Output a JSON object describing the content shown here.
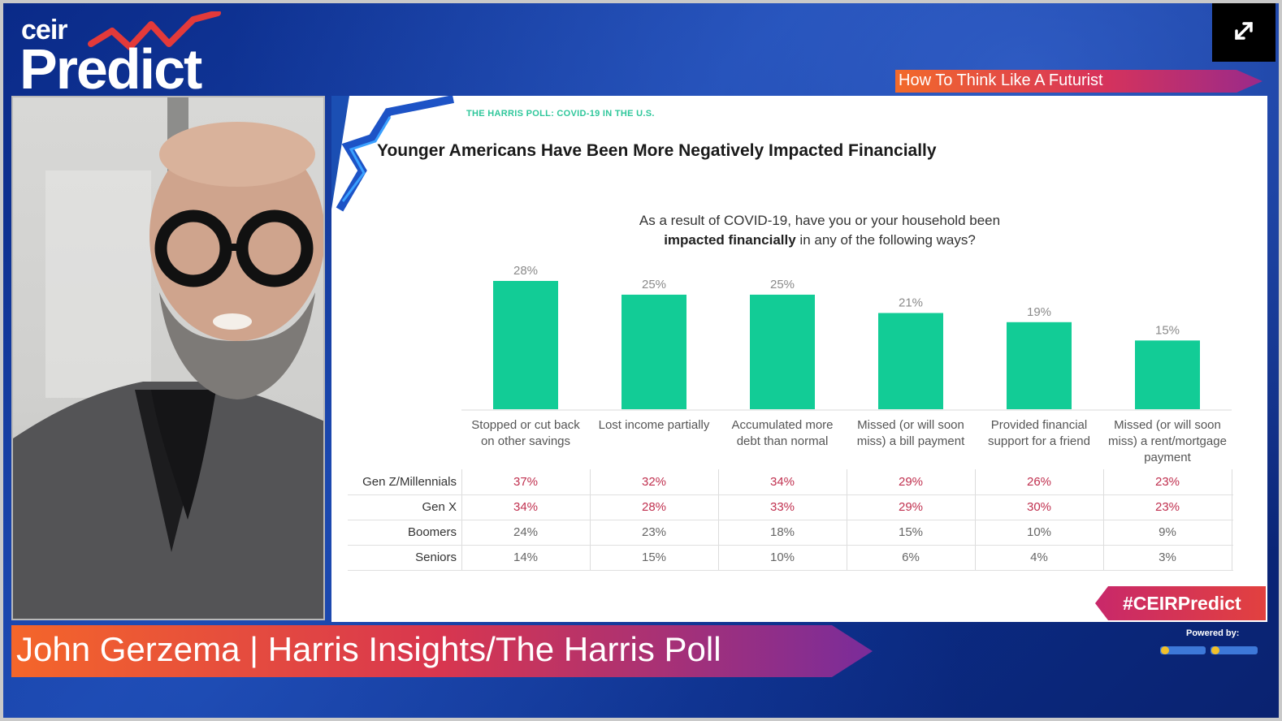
{
  "brand": {
    "small": "ceir",
    "big": "Predict"
  },
  "session_title": "How To Think Like A Futurist",
  "slide": {
    "source": "THE HARRIS POLL: COVID-19 IN THE U.S.",
    "title": "Younger Americans Have Been More Negatively Impacted Financially",
    "question_part1": "As a result of COVID-19, have you or your household been",
    "question_bold": "impacted financially",
    "question_part2": " in any of the following ways?"
  },
  "chart_data": {
    "type": "bar",
    "categories": [
      "Stopped or cut back on other savings",
      "Lost income partially",
      "Accumulated more debt than normal",
      "Missed (or will soon miss) a bill payment",
      "Provided financial support for a friend",
      "Missed (or will soon miss) a rent/mortgage payment"
    ],
    "values": [
      28,
      25,
      25,
      21,
      19,
      15
    ],
    "value_labels": [
      "28%",
      "25%",
      "25%",
      "21%",
      "19%",
      "15%"
    ],
    "unit": "%",
    "bar_color": "#12cc96",
    "ylim": [
      0,
      28
    ],
    "grid": false
  },
  "generations": {
    "highlight_color": "#c0304f",
    "normal_color": "#666666",
    "rows": [
      {
        "name": "Gen Z/Millennials",
        "values": [
          "37%",
          "32%",
          "34%",
          "29%",
          "26%",
          "23%"
        ],
        "highlight": true
      },
      {
        "name": "Gen X",
        "values": [
          "34%",
          "28%",
          "33%",
          "29%",
          "30%",
          "23%"
        ],
        "highlight": true
      },
      {
        "name": "Boomers",
        "values": [
          "24%",
          "23%",
          "18%",
          "15%",
          "10%",
          "9%"
        ],
        "highlight": false
      },
      {
        "name": "Seniors",
        "values": [
          "14%",
          "15%",
          "10%",
          "6%",
          "4%",
          "3%"
        ],
        "highlight": false
      }
    ]
  },
  "hashtag": "#CEIRPredict",
  "speaker": {
    "name_line": "John Gerzema | Harris Insights/The Harris Poll"
  },
  "powered_by": "Powered by:",
  "colors": {
    "background": "#0d2b7a",
    "accent_orange": "#f06a2a",
    "accent_magenta": "#c02d6a",
    "bar_green": "#12cc96"
  },
  "icons": {
    "expand": "expand-icon"
  }
}
